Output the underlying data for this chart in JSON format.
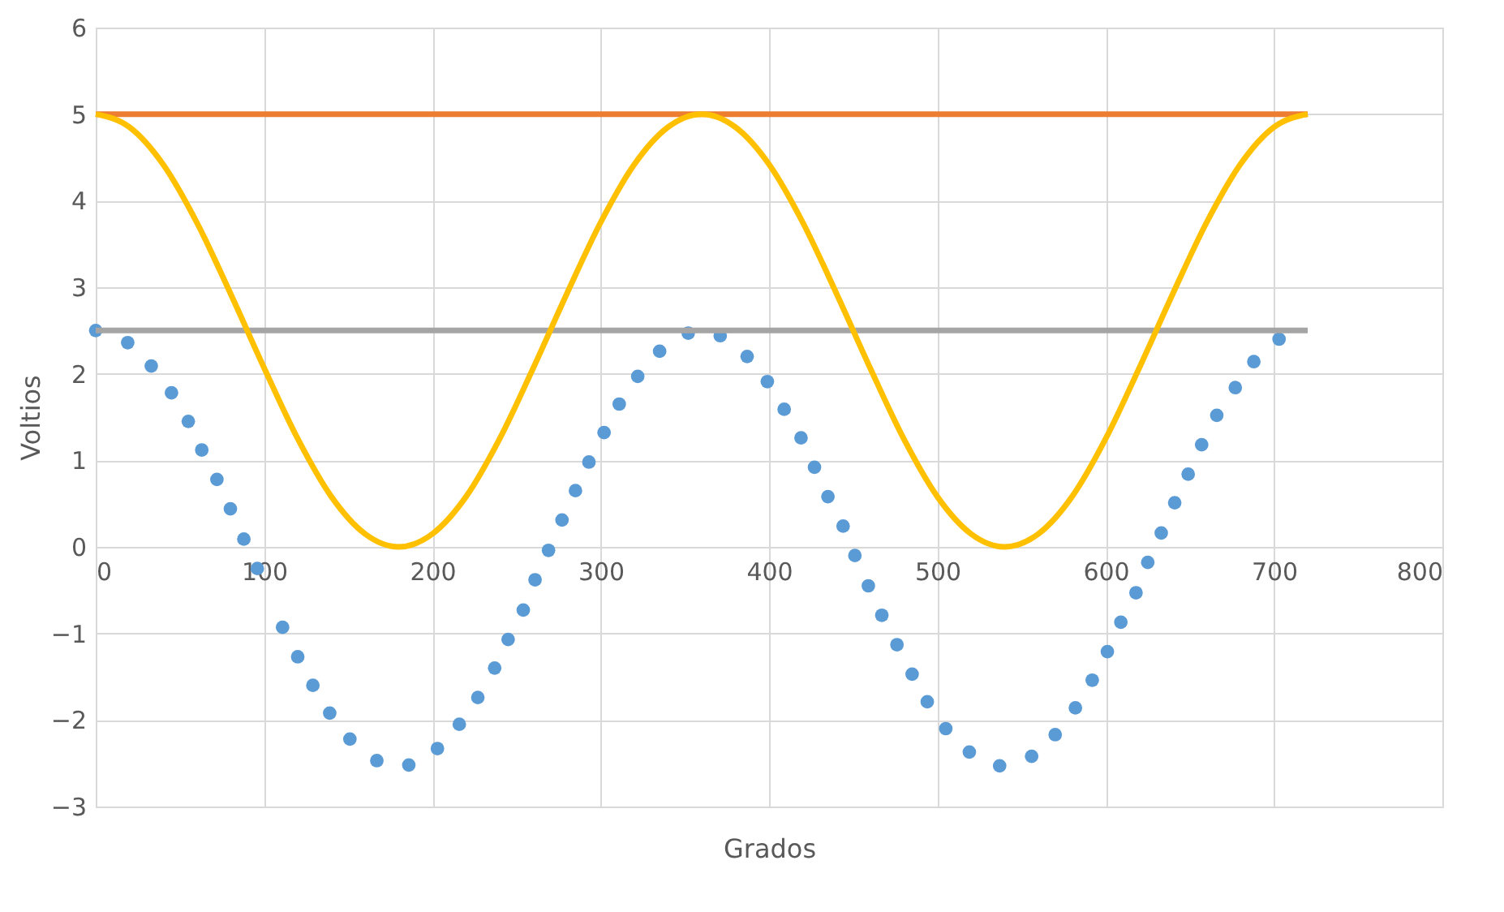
{
  "chart_data": {
    "type": "line",
    "xlabel": "Grados",
    "ylabel": "Voltios",
    "xlim": [
      0,
      800
    ],
    "xticks": [
      0,
      100,
      200,
      300,
      400,
      500,
      600,
      700,
      800
    ],
    "ylim": [
      -3,
      6
    ],
    "yticks": [
      -3,
      -2,
      -1,
      0,
      1,
      2,
      3,
      4,
      5,
      6
    ],
    "grid": true,
    "line_style": "solid",
    "series": [
      {
        "type": "scatter",
        "marker": "circle",
        "color": "#5b9bd5",
        "x": [
          0,
          19,
          33,
          45,
          55,
          63,
          72,
          80,
          88,
          96,
          111,
          120,
          129,
          139,
          151,
          167,
          186,
          203,
          216,
          227,
          237,
          245,
          254,
          261,
          269,
          277,
          285,
          293,
          302,
          311,
          322,
          335,
          352,
          371,
          387,
          399,
          409,
          419,
          427,
          435,
          444,
          451,
          459,
          467,
          476,
          485,
          494,
          505,
          519,
          537,
          556,
          570,
          582,
          592,
          601,
          609,
          618,
          625,
          633,
          641,
          649,
          657,
          666,
          677,
          688,
          703
        ],
        "values": [
          2.5,
          2.36,
          2.09,
          1.78,
          1.45,
          1.12,
          0.78,
          0.44,
          0.09,
          -0.25,
          -0.93,
          -1.27,
          -1.6,
          -1.92,
          -2.22,
          -2.47,
          -2.52,
          -2.33,
          -2.05,
          -1.74,
          -1.4,
          -1.07,
          -0.73,
          -0.38,
          -0.04,
          0.31,
          0.65,
          0.98,
          1.32,
          1.65,
          1.97,
          2.26,
          2.47,
          2.44,
          2.2,
          1.91,
          1.59,
          1.26,
          0.92,
          0.58,
          0.24,
          -0.1,
          -0.45,
          -0.79,
          -1.13,
          -1.47,
          -1.79,
          -2.1,
          -2.37,
          -2.53,
          -2.42,
          -2.17,
          -1.86,
          -1.54,
          -1.21,
          -0.87,
          -0.53,
          -0.18,
          0.16,
          0.51,
          0.84,
          1.18,
          1.52,
          1.84,
          2.14,
          2.4
        ]
      },
      {
        "color": "#ed7d31",
        "x": [
          0,
          720
        ],
        "values": [
          5,
          5
        ]
      },
      {
        "color": "#a5a5a5",
        "x": [
          0,
          720
        ],
        "values": [
          2.5,
          2.5
        ]
      },
      {
        "color": "#ffc000",
        "x": [
          0,
          20,
          40,
          60,
          80,
          100,
          120,
          140,
          160,
          180,
          200,
          220,
          240,
          260,
          280,
          300,
          320,
          340,
          360,
          380,
          400,
          420,
          440,
          460,
          480,
          500,
          520,
          540,
          560,
          580,
          600,
          620,
          640,
          660,
          680,
          700,
          720
        ],
        "values": [
          5,
          4.85,
          4.42,
          3.75,
          2.93,
          2.07,
          1.25,
          0.58,
          0.15,
          0,
          0.15,
          0.58,
          1.25,
          2.07,
          2.93,
          3.75,
          4.42,
          4.85,
          5,
          4.85,
          4.42,
          3.75,
          2.93,
          2.07,
          1.25,
          0.58,
          0.15,
          0,
          0.15,
          0.58,
          1.25,
          2.07,
          2.93,
          3.75,
          4.42,
          4.85,
          5
        ]
      }
    ]
  }
}
